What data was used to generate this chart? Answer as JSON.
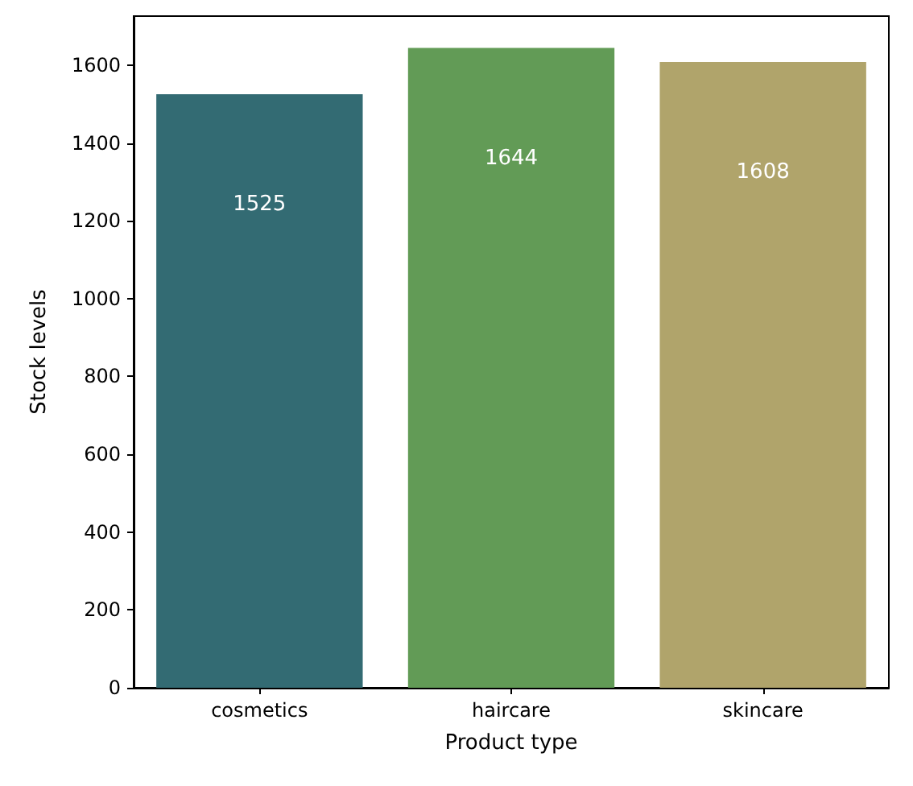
{
  "chart_data": {
    "type": "bar",
    "xlabel": "Product type",
    "ylabel": "Stock levels",
    "categories": [
      "cosmetics",
      "haircare",
      "skincare"
    ],
    "values": [
      1525,
      1644,
      1608
    ],
    "colors": [
      "#336b73",
      "#629b56",
      "#b0a46b"
    ],
    "ylim": [
      0,
      1726
    ],
    "yticks": [
      0,
      200,
      400,
      600,
      800,
      1000,
      1200,
      1400,
      1600
    ],
    "data_labels": true,
    "grid": false
  }
}
